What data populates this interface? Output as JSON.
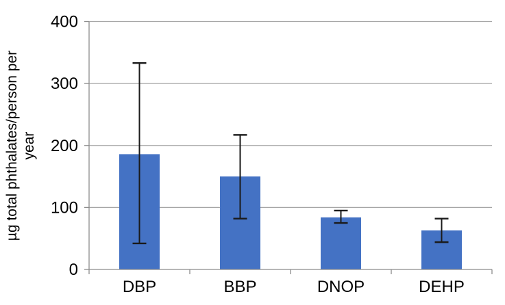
{
  "chart_data": {
    "type": "bar",
    "title": "",
    "categories": [
      "DBP",
      "BBP",
      "DNOP",
      "DEHP"
    ],
    "values": [
      186,
      150,
      84,
      63
    ],
    "error_bars": [
      {
        "low": 42,
        "high": 333
      },
      {
        "low": 82,
        "high": 217
      },
      {
        "low": 75,
        "high": 95
      },
      {
        "low": 44,
        "high": 82
      }
    ],
    "xlabel": "",
    "ylabel": "µg total phthalates/person per year",
    "ylabel_lines": [
      "µg total phthalates/person per",
      "year"
    ],
    "yticks": [
      0,
      100,
      200,
      300,
      400
    ],
    "ylim": [
      0,
      400
    ],
    "grid": true,
    "legend": "none",
    "colors": {
      "bar_fill": "#4472C4",
      "error_bar": "#1a1a1a",
      "gridline": "#A6A6A6",
      "axis_line": "#8C8C8C",
      "tick_label": "#000000",
      "background": "#FFFFFF"
    }
  }
}
